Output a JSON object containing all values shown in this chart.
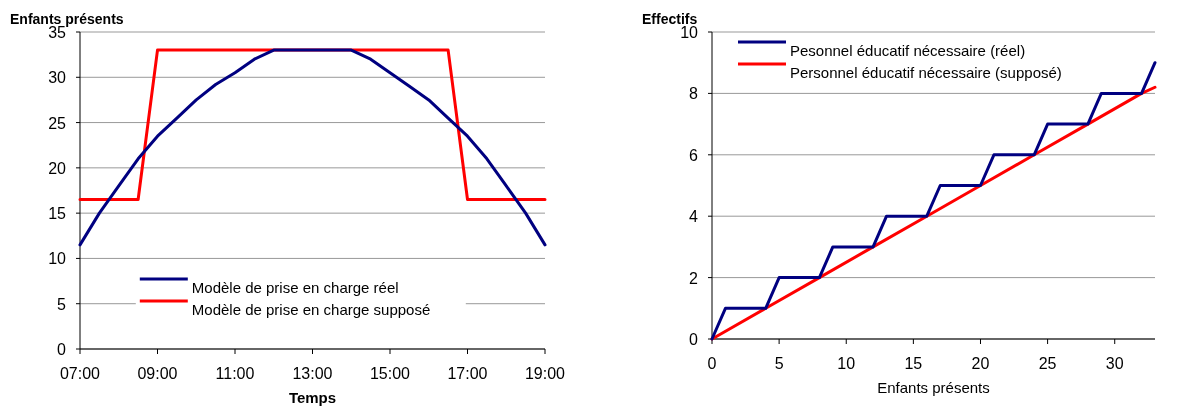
{
  "chart_data": [
    {
      "type": "line",
      "xlabel": "Temps",
      "ylabel": "Enfants présents",
      "xlim": [
        7,
        19
      ],
      "ylim": [
        0,
        35
      ],
      "xticks": [
        {
          "value": 7,
          "label": "07:00"
        },
        {
          "value": 9,
          "label": "09:00"
        },
        {
          "value": 11,
          "label": "11:00"
        },
        {
          "value": 13,
          "label": "13:00"
        },
        {
          "value": 15,
          "label": "15:00"
        },
        {
          "value": 17,
          "label": "17:00"
        },
        {
          "value": 19,
          "label": "19:00"
        }
      ],
      "yticks": [
        0,
        5,
        10,
        15,
        20,
        25,
        30,
        35
      ],
      "grid": "y",
      "legend": "bottom",
      "marker": "none",
      "line_style": "solid",
      "series": [
        {
          "name": "Modèle de prise en charge réel",
          "color": "#000080",
          "x": [
            7,
            7.5,
            8,
            8.5,
            9,
            9.5,
            10,
            10.5,
            11,
            11.5,
            12,
            12.5,
            13,
            13.5,
            14,
            14.5,
            15,
            15.5,
            16,
            16.5,
            17,
            17.5,
            18,
            18.5,
            19
          ],
          "values": [
            11.5,
            15,
            18,
            21,
            23.5,
            25.5,
            27.5,
            29.2,
            30.5,
            32,
            33,
            33,
            33,
            33,
            33,
            32,
            30.5,
            29,
            27.5,
            25.5,
            23.5,
            21,
            18,
            15,
            11.5
          ]
        },
        {
          "name": "Modèle de prise en charge supposé",
          "color": "#ff0000",
          "x": [
            7,
            8.5,
            9,
            16.5,
            17,
            19
          ],
          "values": [
            16.5,
            16.5,
            33,
            33,
            16.5,
            16.5
          ]
        }
      ]
    },
    {
      "type": "line",
      "xlabel": "Enfants présents",
      "ylabel": "Effectifs",
      "xlim": [
        0,
        33
      ],
      "ylim": [
        0,
        10
      ],
      "xticks": [
        0,
        5,
        10,
        15,
        20,
        25,
        30
      ],
      "yticks": [
        0,
        2,
        4,
        6,
        8,
        10
      ],
      "grid": "y",
      "legend": "top left",
      "marker": "none",
      "line_style": "solid",
      "series": [
        {
          "name": "Pesonnel éducatif nécessaire (réel)",
          "color": "#000080",
          "x": [
            0,
            1,
            4,
            5,
            8,
            9,
            12,
            13,
            16,
            17,
            20,
            21,
            24,
            25,
            28,
            29,
            32,
            33
          ],
          "values": [
            0,
            1,
            1,
            2,
            2,
            3,
            3,
            4,
            4,
            5,
            5,
            6,
            6,
            7,
            7,
            8,
            8,
            9
          ]
        },
        {
          "name": "Personnel éducatif nécessaire (supposé)",
          "color": "#ff0000",
          "x": [
            0,
            4,
            8,
            12,
            16,
            20,
            24,
            28,
            32,
            33
          ],
          "values": [
            0,
            1,
            2,
            3,
            4,
            5,
            6,
            7,
            8,
            8.2
          ]
        }
      ]
    }
  ]
}
